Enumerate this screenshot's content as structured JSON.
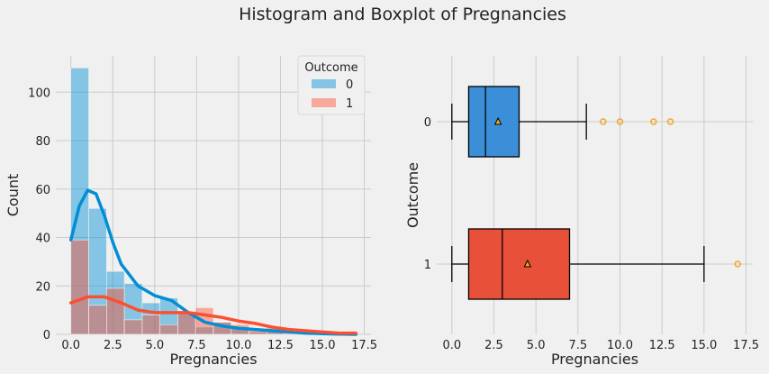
{
  "figure": {
    "title": "Histogram and Boxplot of Pregnancies"
  },
  "colors": {
    "outcome0": "#008fd5",
    "outcome0_bar": "rgba(0,143,213,0.45)",
    "outcome1": "#fc4f30",
    "outcome1_bar": "rgba(252,79,48,0.45)",
    "box0": "#3b8fd8",
    "box1": "#e8503a",
    "flier": "#f5a623"
  },
  "chart_data": [
    {
      "type": "bar",
      "subtype": "histogram_with_kde",
      "xlabel": "Pregnancies",
      "ylabel": "Count",
      "xlim": [
        -0.9,
        17.9
      ],
      "ylim": [
        0,
        115
      ],
      "xticks": [
        0,
        2.5,
        5,
        7.5,
        10,
        12.5,
        15,
        17.5
      ],
      "xtick_labels": [
        "0.0",
        "2.5",
        "5.0",
        "7.5",
        "10.0",
        "12.5",
        "15.0",
        "17.5"
      ],
      "yticks": [
        0,
        20,
        40,
        60,
        80,
        100
      ],
      "ytick_labels": [
        "0",
        "20",
        "40",
        "60",
        "80",
        "100"
      ],
      "bin_edges": [
        0,
        1.0625,
        2.125,
        3.1875,
        4.25,
        5.3125,
        6.375,
        7.4375,
        8.5,
        9.5625,
        10.625,
        11.6875,
        12.75,
        13.8125,
        14.875,
        15.9375,
        17
      ],
      "legend": {
        "title": "Outcome",
        "position": "top-right",
        "entries": [
          "0",
          "1"
        ]
      },
      "series": [
        {
          "name": "0",
          "counts": [
            110,
            52,
            26,
            21,
            13,
            15,
            9,
            3,
            5,
            3,
            1,
            1,
            0,
            0,
            0,
            0
          ],
          "kde": {
            "x": [
              0,
              0.5,
              1,
              1.5,
              2,
              2.5,
              3,
              4,
              5,
              6,
              7,
              8,
              9,
              10,
              11,
              12,
              13,
              14,
              15,
              16,
              17
            ],
            "y": [
              39,
              53,
              59.5,
              58,
              49,
              38,
              29,
              20,
              16,
              14,
              9,
              5,
              3.5,
              2.5,
              2,
              1.5,
              1,
              0.5,
              0.3,
              0.1,
              0
            ]
          }
        },
        {
          "name": "1",
          "counts": [
            39,
            12,
            19,
            6,
            8,
            4,
            9,
            11,
            5,
            4,
            2,
            3,
            1,
            0,
            0,
            1
          ],
          "kde": {
            "x": [
              0,
              1,
              2,
              3,
              4,
              5,
              6,
              7,
              8,
              9,
              10,
              11,
              12,
              13,
              14,
              15,
              16,
              17
            ],
            "y": [
              13,
              15.5,
              15.5,
              13,
              10,
              9,
              9,
              9,
              8,
              7,
              5.5,
              4.5,
              3,
              2,
              1.5,
              1,
              0.5,
              0.5
            ]
          }
        }
      ]
    },
    {
      "type": "box",
      "orientation": "horizontal",
      "xlabel": "Pregnancies",
      "ylabel": "Outcome",
      "xlim": [
        -0.9,
        17.9
      ],
      "xticks": [
        0,
        2.5,
        5,
        7.5,
        10,
        12.5,
        15,
        17.5
      ],
      "xtick_labels": [
        "0.0",
        "2.5",
        "5.0",
        "7.5",
        "10.0",
        "12.5",
        "15.0",
        "17.5"
      ],
      "categories": [
        "0",
        "1"
      ],
      "boxes": [
        {
          "name": "0",
          "whisker_low": 0,
          "q1": 1,
          "median": 2,
          "q3": 4,
          "whisker_high": 8,
          "mean": 2.75,
          "fliers": [
            9,
            10,
            12,
            13
          ]
        },
        {
          "name": "1",
          "whisker_low": 0,
          "q1": 1,
          "median": 3,
          "q3": 7,
          "whisker_high": 15,
          "mean": 4.5,
          "fliers": [
            17
          ]
        }
      ]
    }
  ]
}
